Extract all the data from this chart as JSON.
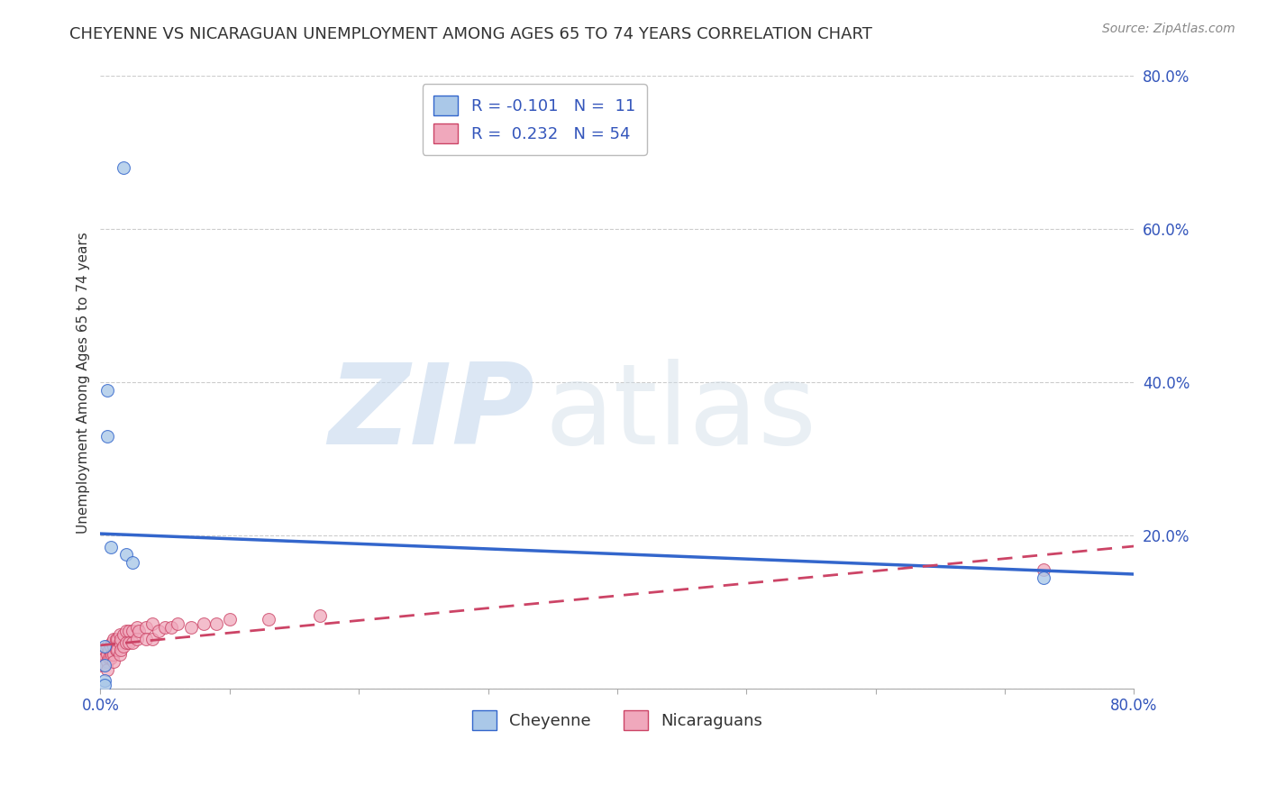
{
  "title": "CHEYENNE VS NICARAGUAN UNEMPLOYMENT AMONG AGES 65 TO 74 YEARS CORRELATION CHART",
  "source": "Source: ZipAtlas.com",
  "ylabel": "Unemployment Among Ages 65 to 74 years",
  "xlim": [
    0.0,
    0.8
  ],
  "ylim": [
    0.0,
    0.8
  ],
  "xticks": [
    0.0,
    0.1,
    0.2,
    0.3,
    0.4,
    0.5,
    0.6,
    0.7,
    0.8
  ],
  "yticks": [
    0.0,
    0.2,
    0.4,
    0.6,
    0.8
  ],
  "ytick_labels": [
    "",
    "20.0%",
    "40.0%",
    "60.0%",
    "80.0%"
  ],
  "xtick_labels": [
    "0.0%",
    "",
    "",
    "",
    "",
    "",
    "",
    "",
    "80.0%"
  ],
  "cheyenne_R": -0.101,
  "cheyenne_N": 11,
  "nicaraguan_R": 0.232,
  "nicaraguan_N": 54,
  "cheyenne_color": "#aac8e8",
  "nicaraguan_color": "#f0a8bc",
  "cheyenne_line_color": "#3366cc",
  "nicaraguan_line_color": "#cc4466",
  "watermark_zip": "ZIP",
  "watermark_atlas": "atlas",
  "background_color": "#ffffff",
  "grid_color": "#cccccc",
  "cheyenne_x": [
    0.018,
    0.005,
    0.005,
    0.008,
    0.02,
    0.025,
    0.73,
    0.003,
    0.003,
    0.003,
    0.003
  ],
  "cheyenne_y": [
    0.68,
    0.39,
    0.33,
    0.185,
    0.175,
    0.165,
    0.145,
    0.055,
    0.03,
    0.01,
    0.005
  ],
  "nicaraguan_x": [
    0.0,
    0.0,
    0.003,
    0.003,
    0.003,
    0.005,
    0.005,
    0.005,
    0.005,
    0.007,
    0.007,
    0.008,
    0.008,
    0.009,
    0.009,
    0.01,
    0.01,
    0.01,
    0.01,
    0.012,
    0.012,
    0.013,
    0.013,
    0.015,
    0.015,
    0.015,
    0.016,
    0.016,
    0.018,
    0.018,
    0.02,
    0.02,
    0.022,
    0.022,
    0.025,
    0.025,
    0.028,
    0.028,
    0.03,
    0.035,
    0.035,
    0.04,
    0.04,
    0.045,
    0.05,
    0.055,
    0.06,
    0.07,
    0.08,
    0.09,
    0.1,
    0.13,
    0.17,
    0.73
  ],
  "nicaraguan_y": [
    0.045,
    0.03,
    0.05,
    0.04,
    0.03,
    0.055,
    0.045,
    0.035,
    0.025,
    0.05,
    0.04,
    0.055,
    0.04,
    0.06,
    0.045,
    0.065,
    0.055,
    0.045,
    0.035,
    0.065,
    0.05,
    0.065,
    0.05,
    0.07,
    0.06,
    0.045,
    0.065,
    0.05,
    0.07,
    0.055,
    0.075,
    0.06,
    0.075,
    0.06,
    0.075,
    0.06,
    0.08,
    0.065,
    0.075,
    0.08,
    0.065,
    0.085,
    0.065,
    0.075,
    0.08,
    0.08,
    0.085,
    0.08,
    0.085,
    0.085,
    0.09,
    0.09,
    0.095,
    0.155
  ],
  "title_fontsize": 13,
  "axis_label_fontsize": 11,
  "tick_fontsize": 12,
  "legend_fontsize": 13,
  "source_fontsize": 10,
  "marker_size": 100
}
